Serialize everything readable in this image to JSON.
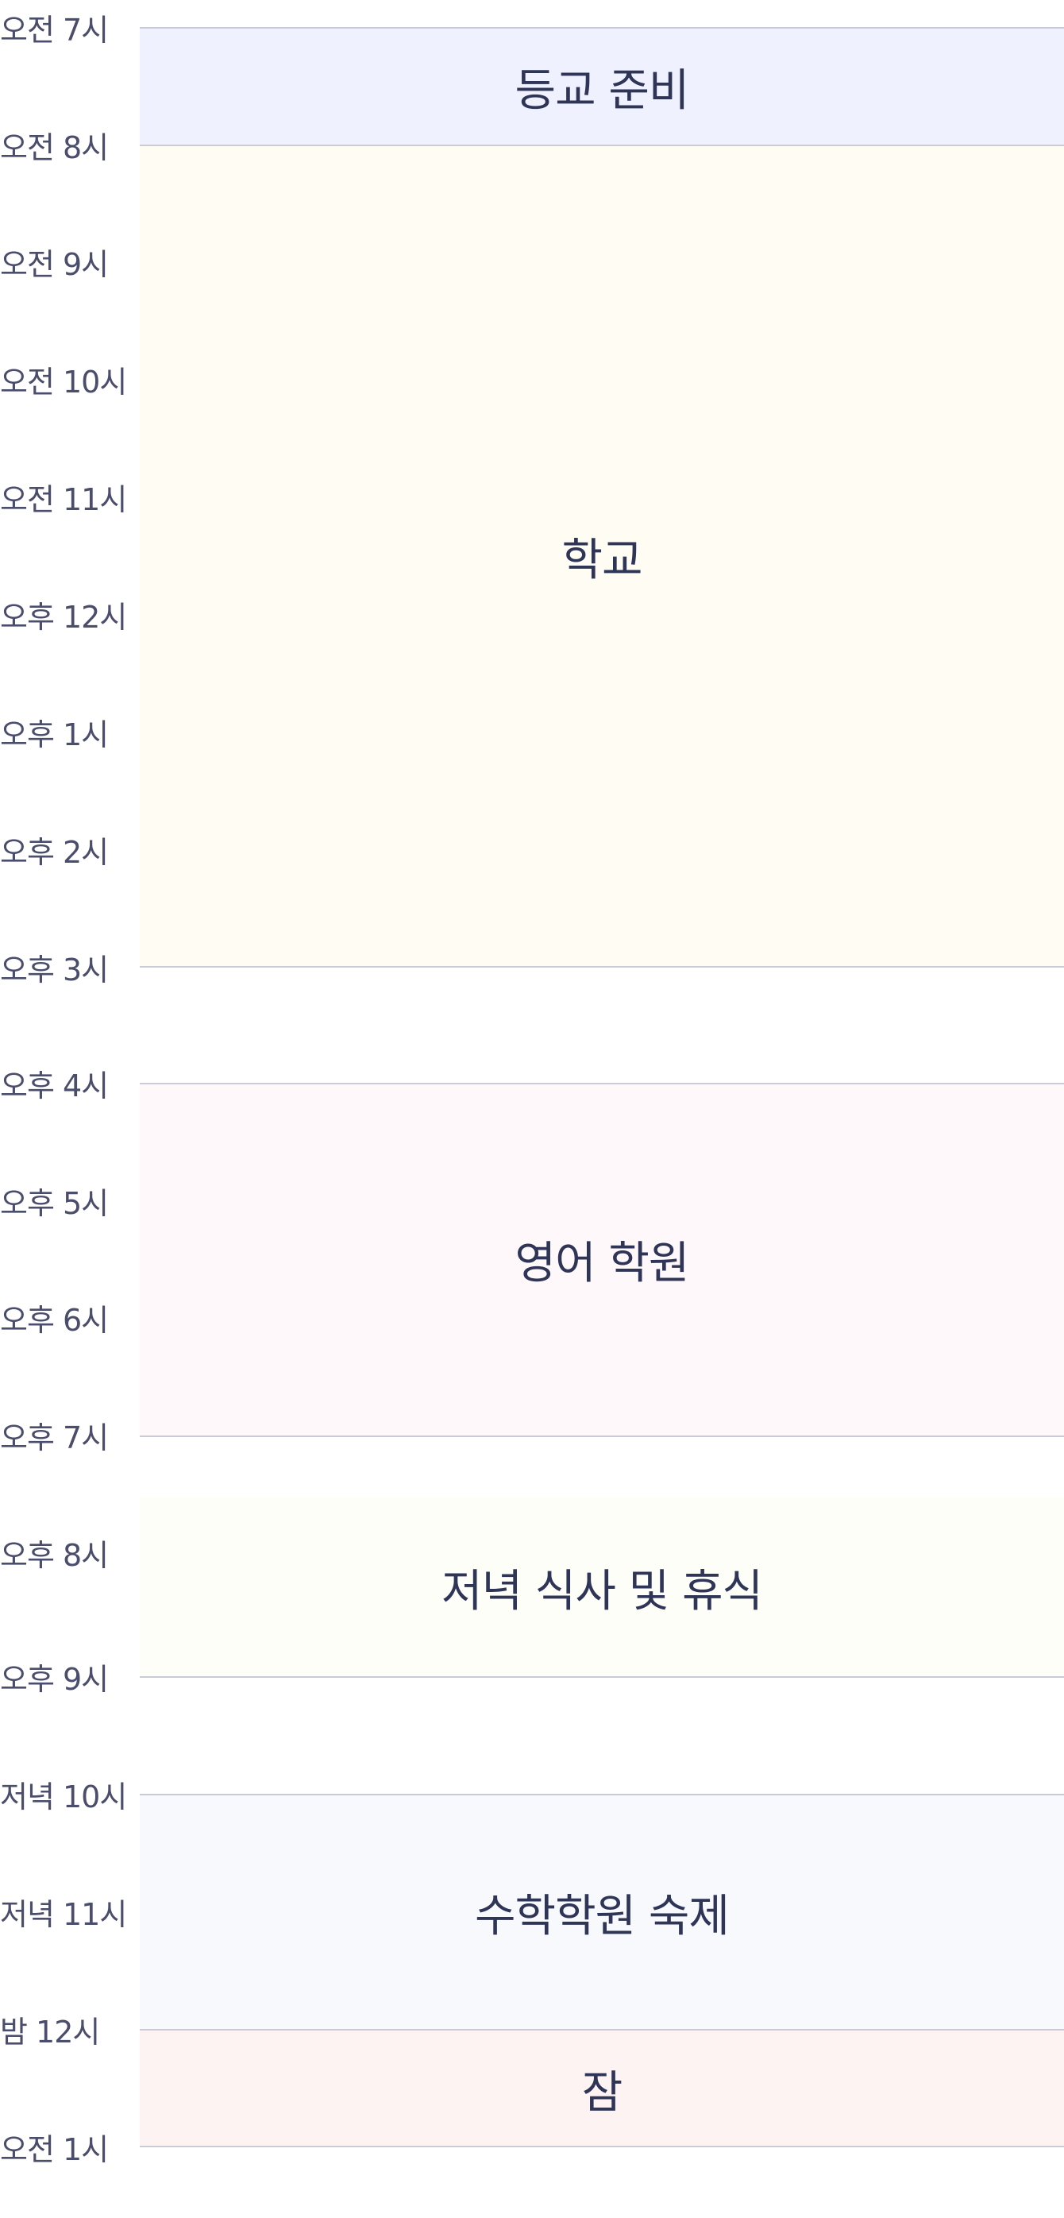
{
  "schedule": {
    "time_labels": [
      "오전 7시",
      "오전 8시",
      "오전 9시",
      "오전 10시",
      "오전 11시",
      "오후 12시",
      "오후 1시",
      "오후 2시",
      "오후 3시",
      "오후 4시",
      "오후 5시",
      "오후 6시",
      "오후 7시",
      "오후 8시",
      "오후 9시",
      "저녁 10시",
      "저녁 11시",
      "밤 12시",
      "오전 1시"
    ],
    "events": [
      {
        "title": "등교 준비",
        "color": "#eff2fe"
      },
      {
        "title": "학교",
        "color": "#fffcf4"
      },
      {
        "title": "영어 학원",
        "color": "#fff8fa"
      },
      {
        "title": "저녁 식사 및 휴식",
        "color": "#fefef8"
      },
      {
        "title": "수학학원 숙제",
        "color": "#f7f9fd"
      },
      {
        "title": "잠",
        "color": "#fef3f3"
      }
    ]
  }
}
